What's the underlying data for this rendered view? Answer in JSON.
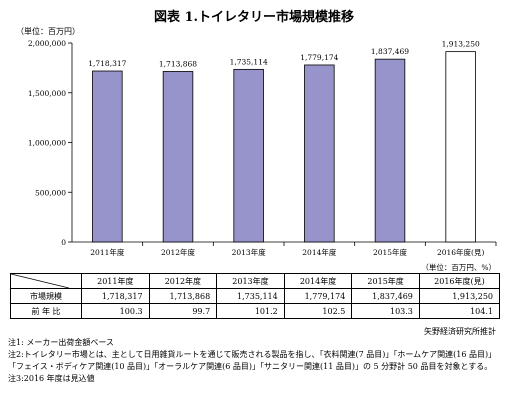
{
  "title": "図表 1.トイレタリー市場規模推移",
  "unit_top": "（単位：百万円）",
  "unit_table": "（単位：百万円、%）",
  "chart_data": {
    "type": "bar",
    "categories": [
      "2011年度",
      "2012年度",
      "2013年度",
      "2014年度",
      "2015年度",
      "2016年度(見)"
    ],
    "values": [
      1718317,
      1713868,
      1735114,
      1779174,
      1837469,
      1913250
    ],
    "value_labels": [
      "1,718,317",
      "1,713,868",
      "1,735,114",
      "1,779,174",
      "1,837,469",
      "1,913,250"
    ],
    "ylim": [
      0,
      2000000
    ],
    "yticks": [
      0,
      500000,
      1000000,
      1500000,
      2000000
    ],
    "ytick_labels": [
      "0",
      "500,000",
      "1,000,000",
      "1,500,000",
      "2,000,000"
    ],
    "bar_color": "#9794cc",
    "forecast_bar_color": "#ffffff",
    "grid": false
  },
  "table": {
    "headers": [
      "2011年度",
      "2012年度",
      "2013年度",
      "2014年度",
      "2015年度",
      "2016年度(見)"
    ],
    "rows": [
      {
        "label": "市場規模",
        "values": [
          "1,718,317",
          "1,713,868",
          "1,735,114",
          "1,779,174",
          "1,837,469",
          "1,913,250"
        ]
      },
      {
        "label": "前 年 比",
        "values": [
          "100.3",
          "99.7",
          "101.2",
          "102.5",
          "103.3",
          "104.1"
        ]
      }
    ]
  },
  "source": "矢野経済研究所推計",
  "notes": [
    "注1: メーカー出荷金額ベース",
    "注2:トイレタリー市場とは、主として日用雑貨ルートを通じて販売される製品を指し、「衣料関連(7 品目)」「ホームケア関連(16 品目)」「フェイス・ボディケア関連(10 品目)」「オーラルケア関連(6 品目)」「サニタリー関連(11 品目)」の 5 分野計 50 品目を対象とする。",
    "注3:2016 年度は見込値"
  ]
}
